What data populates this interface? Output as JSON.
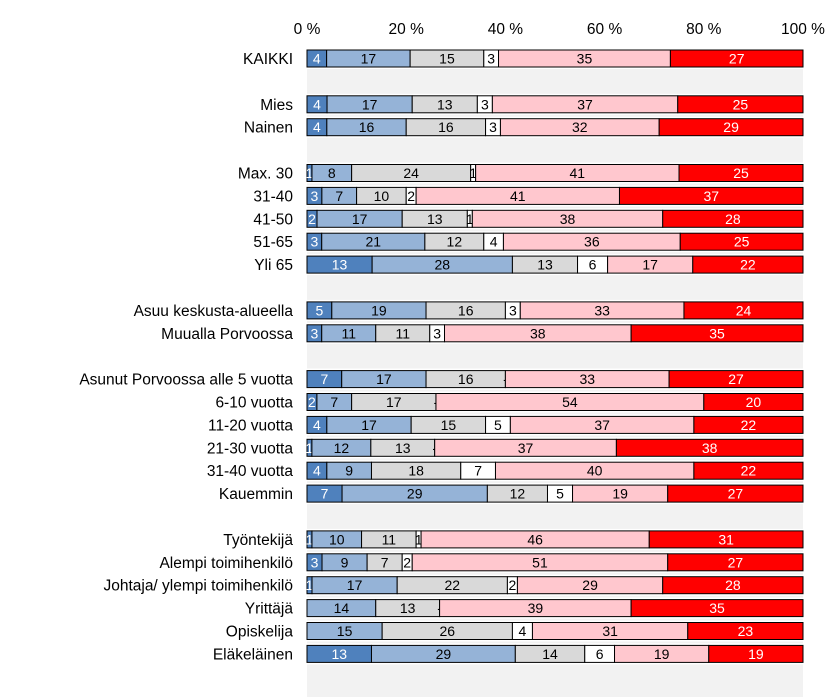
{
  "chart_data": {
    "type": "bar",
    "orientation": "horizontal",
    "stacked": "percent",
    "xlim": [
      0,
      100
    ],
    "x_ticks": [
      "0 %",
      "20 %",
      "40 %",
      "60 %",
      "80 %",
      "100 %"
    ],
    "grid": false,
    "legend": "none",
    "colors": [
      "#4f81bd",
      "#95b3d7",
      "#d9d9d9",
      "#ffffff",
      "#ffc7ce",
      "#ff0000"
    ],
    "label_colors": [
      "#ffffff",
      "#000000",
      "#000000",
      "#000000",
      "#000000",
      "#ffffff"
    ],
    "groups": [
      {
        "rows": [
          {
            "label": "KAIKKI",
            "values": [
              4,
              17,
              15,
              3,
              35,
              27
            ],
            "labels": [
              "4",
              "17",
              "15",
              "3",
              "35",
              "27"
            ]
          }
        ]
      },
      {
        "rows": [
          {
            "label": "Mies",
            "values": [
              4,
              17,
              13,
              3,
              37,
              25
            ],
            "labels": [
              "4",
              "17",
              "13",
              "3",
              "37",
              "25"
            ]
          },
          {
            "label": "Nainen",
            "values": [
              4,
              16,
              16,
              3,
              32,
              29
            ],
            "labels": [
              "4",
              "16",
              "16",
              "3",
              "32",
              "29"
            ]
          }
        ]
      },
      {
        "rows": [
          {
            "label": "Max. 30",
            "values": [
              1,
              8,
              24,
              1,
              41,
              25
            ],
            "labels": [
              "1",
              "8",
              "24",
              "1",
              "41",
              "25"
            ]
          },
          {
            "label": "31-40",
            "values": [
              3,
              7,
              10,
              2,
              41,
              37
            ],
            "labels": [
              "3",
              "7",
              "10",
              "2",
              "41",
              "37"
            ]
          },
          {
            "label": "41-50",
            "values": [
              2,
              17,
              13,
              1,
              38,
              28
            ],
            "labels": [
              "2",
              "17",
              "13",
              "1",
              "38",
              "28"
            ]
          },
          {
            "label": "51-65",
            "values": [
              3,
              21,
              12,
              4,
              36,
              25
            ],
            "labels": [
              "3",
              "21",
              "12",
              "4",
              "36",
              "25"
            ]
          },
          {
            "label": "Yli 65",
            "values": [
              13,
              28,
              13,
              6,
              17,
              22
            ],
            "labels": [
              "13",
              "28",
              "13",
              "6",
              "17",
              "22"
            ]
          }
        ]
      },
      {
        "rows": [
          {
            "label": "Asuu keskusta-alueella",
            "values": [
              5,
              19,
              16,
              3,
              33,
              24
            ],
            "labels": [
              "5",
              "19",
              "16",
              "3",
              "33",
              "24"
            ]
          },
          {
            "label": "Muualla Porvoossa",
            "values": [
              3,
              11,
              11,
              3,
              38,
              35
            ],
            "labels": [
              "3",
              "11",
              "11",
              "3",
              "38",
              "35"
            ]
          }
        ]
      },
      {
        "rows": [
          {
            "label": "Asunut Porvoossa alle 5 vuotta",
            "values": [
              7,
              17,
              16,
              0,
              33,
              27
            ],
            "labels": [
              "7",
              "17",
              "16",
              "-",
              "33",
              "27"
            ]
          },
          {
            "label": "6-10 vuotta",
            "values": [
              2,
              7,
              17,
              0,
              54,
              20
            ],
            "labels": [
              "2",
              "7",
              "17",
              "-",
              "54",
              "20"
            ]
          },
          {
            "label": "11-20 vuotta",
            "values": [
              4,
              17,
              15,
              5,
              37,
              22
            ],
            "labels": [
              "4",
              "17",
              "15",
              "5",
              "37",
              "22"
            ]
          },
          {
            "label": "21-30 vuotta",
            "values": [
              1,
              12,
              13,
              0,
              37,
              38
            ],
            "labels": [
              "1",
              "12",
              "13",
              "-",
              "37",
              "38"
            ]
          },
          {
            "label": "31-40 vuotta",
            "values": [
              4,
              9,
              18,
              7,
              40,
              22
            ],
            "labels": [
              "4",
              "9",
              "18",
              "7",
              "40",
              "22"
            ]
          },
          {
            "label": "Kauemmin",
            "values": [
              7,
              29,
              12,
              5,
              19,
              27
            ],
            "labels": [
              "7",
              "29",
              "12",
              "5",
              "19",
              "27"
            ]
          }
        ]
      },
      {
        "rows": [
          {
            "label": "Työntekijä",
            "values": [
              1,
              10,
              11,
              1,
              46,
              31
            ],
            "labels": [
              "1",
              "10",
              "11",
              "1",
              "46",
              "31"
            ]
          },
          {
            "label": "Alempi toimihenkilö",
            "values": [
              3,
              9,
              7,
              2,
              51,
              27
            ],
            "labels": [
              "3",
              "9",
              "7",
              "2",
              "51",
              "27"
            ]
          },
          {
            "label": "Johtaja/ ylempi toimihenkilö",
            "values": [
              1,
              17,
              22,
              2,
              29,
              28
            ],
            "labels": [
              "1",
              "17",
              "22",
              "2",
              "29",
              "28"
            ]
          },
          {
            "label": "Yrittäjä",
            "values": [
              0,
              14,
              13,
              0,
              39,
              35
            ],
            "labels": [
              "-",
              "14",
              "13",
              "-",
              "39",
              "35"
            ]
          },
          {
            "label": "Opiskelija",
            "values": [
              0,
              15,
              26,
              4,
              31,
              23
            ],
            "labels": [
              "-",
              "15",
              "26",
              "4",
              "31",
              "23"
            ]
          },
          {
            "label": "Eläkeläinen",
            "values": [
              13,
              29,
              14,
              6,
              19,
              19
            ],
            "labels": [
              "13",
              "29",
              "14",
              "6",
              "19",
              "19"
            ]
          }
        ]
      }
    ]
  }
}
